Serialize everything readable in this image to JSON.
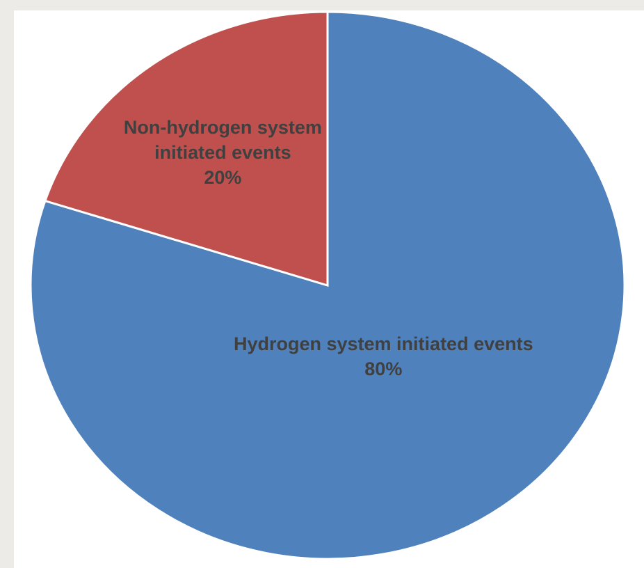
{
  "chart_data": {
    "type": "pie",
    "categories": [
      "Hydrogen system initiated events",
      "Non-hydrogen system initiated events"
    ],
    "values": [
      80,
      20
    ],
    "value_labels": [
      "80%",
      "20%"
    ],
    "colors": [
      "#4f81bd",
      "#c0504d"
    ]
  }
}
